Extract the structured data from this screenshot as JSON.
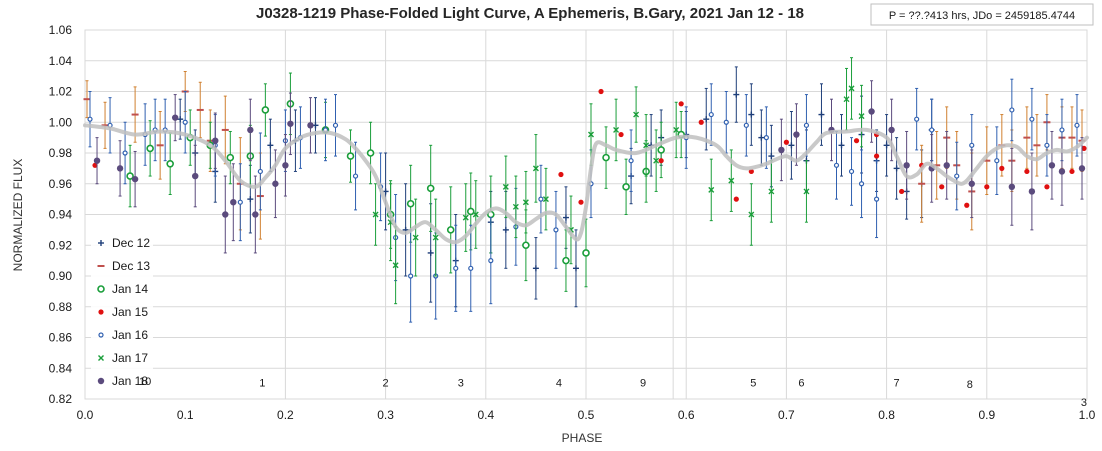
{
  "chart_data": {
    "type": "scatter",
    "title": "J0328-1219 Phase-Folded Light Curve, A Ephemeris, B.Gary, 2021 Jan 12 - 18",
    "info_box": "P = ??.?413 hrs, JDo = 2459185.4744",
    "xlabel": "PHASE",
    "ylabel": "NORMALIZED FLUX",
    "xlim": [
      0.0,
      1.0
    ],
    "ylim": [
      0.82,
      1.06
    ],
    "xticks": [
      0.0,
      0.1,
      0.2,
      0.3,
      0.4,
      0.5,
      0.6,
      0.7,
      0.8,
      0.9,
      1.0
    ],
    "xtick_labels": [
      "0.0",
      "0.1",
      "0.2",
      "0.3",
      "0.4",
      "0.5",
      "0.6",
      "0.7",
      "0.8",
      "0.9",
      "1.0"
    ],
    "yticks": [
      0.82,
      0.84,
      0.86,
      0.88,
      0.9,
      0.92,
      0.94,
      0.96,
      0.98,
      1.0,
      1.02,
      1.04,
      1.06
    ],
    "ytick_labels": [
      "0.82",
      "0.84",
      "0.86",
      "0.88",
      "0.90",
      "0.92",
      "0.94",
      "0.96",
      "0.98",
      "1.00",
      "1.02",
      "1.04",
      "1.06"
    ],
    "grid": true,
    "legend_position": "left",
    "segment_boundaries": [
      0.2,
      0.3,
      0.4,
      0.5,
      0.587,
      0.6,
      0.7,
      0.8,
      0.9
    ],
    "segment_labels": [
      {
        "text": "10",
        "x": 0.06,
        "y": 0.829
      },
      {
        "text": "1",
        "x": 0.177,
        "y": 0.828
      },
      {
        "text": "2",
        "x": 0.3,
        "y": 0.828
      },
      {
        "text": "3",
        "x": 0.375,
        "y": 0.828
      },
      {
        "text": "4",
        "x": 0.473,
        "y": 0.828
      },
      {
        "text": "9",
        "x": 0.557,
        "y": 0.828
      },
      {
        "text": "5",
        "x": 0.667,
        "y": 0.828
      },
      {
        "text": "6",
        "x": 0.715,
        "y": 0.828
      },
      {
        "text": "7",
        "x": 0.81,
        "y": 0.828
      },
      {
        "text": "8",
        "x": 0.883,
        "y": 0.827
      },
      {
        "text": "3",
        "x": 0.997,
        "y": 0.8155
      }
    ],
    "model_curve": {
      "name": "",
      "color": "#c0c0c0",
      "x": [
        0.0,
        0.025,
        0.05,
        0.075,
        0.1,
        0.125,
        0.14,
        0.155,
        0.17,
        0.18,
        0.19,
        0.2,
        0.215,
        0.23,
        0.245,
        0.26,
        0.27,
        0.28,
        0.29,
        0.3,
        0.31,
        0.32,
        0.33,
        0.34,
        0.35,
        0.36,
        0.37,
        0.38,
        0.39,
        0.4,
        0.41,
        0.42,
        0.43,
        0.44,
        0.45,
        0.46,
        0.47,
        0.48,
        0.49,
        0.495,
        0.5,
        0.505,
        0.51,
        0.52,
        0.53,
        0.55,
        0.57,
        0.59,
        0.61,
        0.63,
        0.64,
        0.65,
        0.66,
        0.67,
        0.68,
        0.69,
        0.7,
        0.71,
        0.72,
        0.73,
        0.74,
        0.76,
        0.78,
        0.8,
        0.81,
        0.82,
        0.83,
        0.84,
        0.85,
        0.86,
        0.87,
        0.875,
        0.88,
        0.89,
        0.9,
        0.91,
        0.92,
        0.93,
        0.94,
        0.95,
        0.96,
        0.97,
        0.98,
        0.99,
        1.0
      ],
      "y": [
        0.998,
        0.996,
        0.992,
        0.994,
        0.992,
        0.985,
        0.975,
        0.962,
        0.958,
        0.964,
        0.972,
        0.983,
        0.99,
        0.993,
        0.993,
        0.989,
        0.983,
        0.975,
        0.965,
        0.948,
        0.932,
        0.928,
        0.932,
        0.935,
        0.93,
        0.924,
        0.922,
        0.926,
        0.934,
        0.941,
        0.944,
        0.941,
        0.935,
        0.933,
        0.937,
        0.941,
        0.94,
        0.932,
        0.924,
        0.928,
        0.945,
        0.97,
        0.986,
        0.985,
        0.982,
        0.98,
        0.985,
        0.99,
        0.99,
        0.985,
        0.978,
        0.972,
        0.97,
        0.971,
        0.973,
        0.976,
        0.978,
        0.975,
        0.98,
        0.987,
        0.993,
        0.994,
        0.995,
        0.99,
        0.978,
        0.965,
        0.966,
        0.973,
        0.97,
        0.965,
        0.961,
        0.96,
        0.962,
        0.97,
        0.978,
        0.983,
        0.985,
        0.984,
        0.978,
        0.976,
        0.98,
        0.982,
        0.981,
        0.984,
        0.99
      ]
    },
    "series": [
      {
        "name": "Dec 12",
        "marker": "plus",
        "color": "#1f3f7a",
        "x": [
          0.095,
          0.11,
          0.13,
          0.165,
          0.185,
          0.21,
          0.23,
          0.3,
          0.32,
          0.345,
          0.37,
          0.405,
          0.42,
          0.45,
          0.48,
          0.49,
          0.545,
          0.565,
          0.575,
          0.6,
          0.62,
          0.65,
          0.665,
          0.675,
          0.685,
          0.705,
          0.72,
          0.735,
          0.755,
          0.775,
          0.79,
          0.8,
          0.81,
          0.82,
          0.835,
          0.845
        ],
        "y": [
          1.002,
          0.98,
          0.968,
          0.95,
          0.985,
          0.988,
          0.998,
          0.955,
          0.93,
          0.915,
          0.91,
          0.935,
          0.93,
          0.905,
          0.938,
          0.905,
          0.965,
          0.985,
          0.99,
          0.992,
          1.002,
          1.018,
          1.005,
          0.99,
          0.978,
          0.985,
          0.975,
          1.005,
          0.985,
          0.992,
          0.975,
          0.985,
          0.97,
          0.955,
          0.96,
          0.995
        ],
        "err": [
          0.013,
          0.015,
          0.02,
          0.022,
          0.017,
          0.02,
          0.018,
          0.025,
          0.03,
          0.032,
          0.03,
          0.02,
          0.025,
          0.02,
          0.02,
          0.025,
          0.018,
          0.02,
          0.018,
          0.015,
          0.02,
          0.018,
          0.02,
          0.018,
          0.02,
          0.022,
          0.02,
          0.02,
          0.02,
          0.025,
          0.02,
          0.02,
          0.02,
          0.018,
          0.022,
          0.02
        ]
      },
      {
        "name": "Dec 13",
        "marker": "dash",
        "color": "#c0504d",
        "errcolor": "#d08030",
        "x": [
          0.002,
          0.02,
          0.05,
          0.075,
          0.1,
          0.115,
          0.125,
          0.14,
          0.155,
          0.175,
          0.835,
          0.85,
          0.86,
          0.87,
          0.885,
          0.9,
          0.915,
          0.925,
          0.94,
          0.95,
          0.96,
          0.975,
          0.985,
          0.995
        ],
        "y": [
          1.015,
          0.998,
          1.005,
          0.985,
          1.02,
          1.008,
          0.988,
          0.995,
          0.96,
          0.952,
          0.96,
          0.972,
          0.99,
          0.972,
          0.955,
          0.975,
          0.985,
          0.975,
          0.99,
          0.985,
          1.0,
          0.99,
          0.99,
          0.988
        ],
        "err": [
          0.012,
          0.015,
          0.018,
          0.022,
          0.013,
          0.018,
          0.02,
          0.022,
          0.03,
          0.028,
          0.025,
          0.022,
          0.02,
          0.022,
          0.025,
          0.022,
          0.02,
          0.02,
          0.02,
          0.02,
          0.018,
          0.02,
          0.02,
          0.02
        ]
      },
      {
        "name": "Jan 14",
        "marker": "circle-open",
        "color": "#1a9e3a",
        "x": [
          0.045,
          0.065,
          0.085,
          0.105,
          0.125,
          0.145,
          0.165,
          0.18,
          0.205,
          0.24,
          0.265,
          0.285,
          0.305,
          0.325,
          0.345,
          0.365,
          0.385,
          0.405,
          0.44,
          0.48,
          0.5,
          0.52,
          0.54,
          0.56,
          0.575,
          0.595
        ],
        "y": [
          0.965,
          0.983,
          0.973,
          0.99,
          0.985,
          0.977,
          0.978,
          1.008,
          1.012,
          0.995,
          0.978,
          0.98,
          0.94,
          0.947,
          0.957,
          0.93,
          0.942,
          0.94,
          0.92,
          0.91,
          0.915,
          0.977,
          0.958,
          0.968,
          0.982,
          0.992
        ],
        "err": [
          0.02,
          0.018,
          0.02,
          0.018,
          0.015,
          0.017,
          0.02,
          0.017,
          0.02,
          0.018,
          0.017,
          0.02,
          0.022,
          0.025,
          0.028,
          0.028,
          0.025,
          0.025,
          0.023,
          0.02,
          0.022,
          0.02,
          0.018,
          0.02,
          0.018,
          0.015
        ]
      },
      {
        "name": "Jan 15",
        "marker": "dot",
        "color": "#e01010",
        "x": [
          0.01,
          0.475,
          0.495,
          0.515,
          0.535,
          0.575,
          0.595,
          0.615,
          0.65,
          0.665,
          0.7,
          0.77,
          0.79,
          0.79,
          0.815,
          0.835,
          0.855,
          0.88,
          0.9,
          0.915,
          0.94,
          0.96,
          0.985,
          0.997
        ],
        "y": [
          0.972,
          0.966,
          0.948,
          1.02,
          0.992,
          0.975,
          1.012,
          1.0,
          0.95,
          0.968,
          0.987,
          0.988,
          0.992,
          0.978,
          0.955,
          0.972,
          0.958,
          0.946,
          0.958,
          0.97,
          0.968,
          0.958,
          0.968,
          0.983
        ]
      },
      {
        "name": "Jan 16",
        "marker": "circle-small",
        "color": "#3060b0",
        "x": [
          0.005,
          0.025,
          0.04,
          0.06,
          0.07,
          0.08,
          0.1,
          0.13,
          0.155,
          0.175,
          0.2,
          0.215,
          0.24,
          0.25,
          0.27,
          0.295,
          0.31,
          0.325,
          0.35,
          0.37,
          0.385,
          0.405,
          0.43,
          0.455,
          0.47,
          0.505,
          0.545,
          0.6,
          0.625,
          0.64,
          0.66,
          0.68,
          0.72,
          0.75,
          0.765,
          0.775,
          0.79,
          0.83,
          0.845,
          0.87,
          0.885,
          0.91,
          0.925,
          0.945,
          0.96,
          0.975,
          0.99
        ],
        "y": [
          1.002,
          0.998,
          0.98,
          0.992,
          0.995,
          0.995,
          1.0,
          0.985,
          0.948,
          0.968,
          0.988,
          0.99,
          0.995,
          0.998,
          0.965,
          0.958,
          0.925,
          0.9,
          0.9,
          0.905,
          0.905,
          0.91,
          0.932,
          0.95,
          0.93,
          0.96,
          0.975,
          0.99,
          1.005,
          1.0,
          0.998,
          0.99,
          0.998,
          0.972,
          0.968,
          0.96,
          0.95,
          1.002,
          0.995,
          0.965,
          0.985,
          0.975,
          1.008,
          1.002,
          0.985,
          0.995,
          0.998
        ],
        "err": [
          0.018,
          0.018,
          0.02,
          0.02,
          0.02,
          0.02,
          0.02,
          0.02,
          0.025,
          0.025,
          0.02,
          0.02,
          0.02,
          0.02,
          0.022,
          0.022,
          0.028,
          0.03,
          0.028,
          0.028,
          0.028,
          0.028,
          0.025,
          0.022,
          0.025,
          0.022,
          0.02,
          0.02,
          0.02,
          0.02,
          0.02,
          0.02,
          0.02,
          0.022,
          0.022,
          0.022,
          0.025,
          0.02,
          0.02,
          0.022,
          0.02,
          0.022,
          0.02,
          0.02,
          0.02,
          0.02,
          0.02
        ]
      },
      {
        "name": "Jan 17",
        "marker": "x",
        "color": "#1a9e3a",
        "x": [
          0.29,
          0.305,
          0.31,
          0.33,
          0.35,
          0.38,
          0.39,
          0.42,
          0.43,
          0.44,
          0.45,
          0.46,
          0.485,
          0.505,
          0.53,
          0.55,
          0.56,
          0.57,
          0.59,
          0.625,
          0.645,
          0.665,
          0.685,
          0.72,
          0.76,
          0.765,
          0.775
        ],
        "y": [
          0.94,
          0.935,
          0.907,
          0.925,
          0.925,
          0.938,
          0.94,
          0.958,
          0.945,
          0.948,
          0.97,
          0.95,
          0.93,
          0.992,
          0.995,
          1.005,
          0.985,
          0.975,
          0.995,
          0.956,
          0.962,
          0.94,
          0.955,
          0.955,
          1.015,
          1.022,
          1.004
        ],
        "err": [
          0.02,
          0.025,
          0.025,
          0.025,
          0.025,
          0.022,
          0.022,
          0.02,
          0.02,
          0.02,
          0.022,
          0.02,
          0.022,
          0.02,
          0.02,
          0.018,
          0.02,
          0.02,
          0.018,
          0.02,
          0.02,
          0.02,
          0.02,
          0.02,
          0.02,
          0.02,
          0.02
        ]
      },
      {
        "name": "Jan 18",
        "marker": "dot-large",
        "color": "#5b4b7d",
        "x": [
          0.012,
          0.035,
          0.05,
          0.09,
          0.11,
          0.13,
          0.14,
          0.148,
          0.165,
          0.17,
          0.19,
          0.2,
          0.205,
          0.225,
          0.695,
          0.71,
          0.745,
          0.785,
          0.805,
          0.82,
          0.845,
          0.86,
          0.885,
          0.925,
          0.945,
          0.965,
          0.975,
          0.995
        ],
        "y": [
          0.975,
          0.97,
          0.963,
          1.003,
          0.965,
          0.988,
          0.94,
          0.948,
          0.995,
          0.94,
          0.96,
          0.972,
          0.999,
          0.998,
          0.982,
          0.992,
          0.995,
          1.007,
          0.995,
          0.972,
          0.97,
          0.972,
          0.96,
          0.958,
          0.955,
          0.972,
          0.968,
          0.97
        ],
        "err": [
          0.015,
          0.018,
          0.018,
          0.015,
          0.02,
          0.018,
          0.025,
          0.025,
          0.02,
          0.025,
          0.022,
          0.02,
          0.02,
          0.018,
          0.02,
          0.02,
          0.02,
          0.02,
          0.02,
          0.022,
          0.022,
          0.022,
          0.022,
          0.025,
          0.025,
          0.022,
          0.022,
          0.02
        ]
      }
    ]
  }
}
